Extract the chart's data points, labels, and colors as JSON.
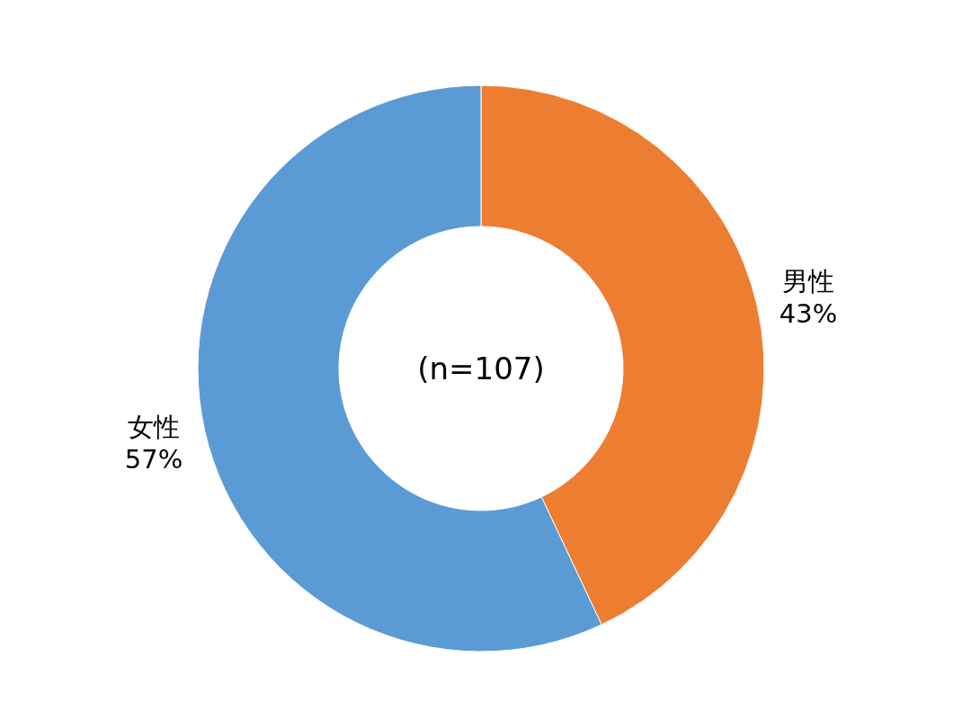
{
  "chart_data": {
    "type": "donut",
    "categories": [
      "男性",
      "女性"
    ],
    "values": [
      43,
      57
    ],
    "colors": [
      "#ed7d31",
      "#5b9bd5"
    ],
    "value_labels": [
      "43%",
      "57%"
    ],
    "annotations": [
      "(n=107)"
    ]
  }
}
